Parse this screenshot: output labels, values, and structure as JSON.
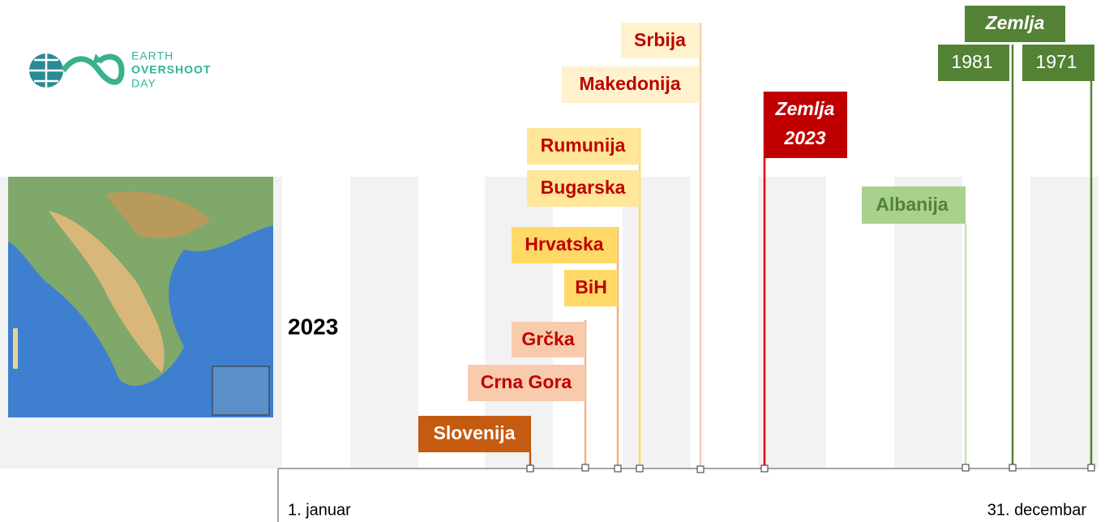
{
  "logo": {
    "lines": [
      "EARTH",
      "OVERSHOOT",
      "DAY"
    ]
  },
  "year": "2023",
  "axis": {
    "start": "1. januar",
    "end": "31. decembar"
  },
  "markers": [
    {
      "label": "Slovenija"
    },
    {
      "label": "Crna Gora"
    },
    {
      "label": "Grčka"
    },
    {
      "label": "BiH"
    },
    {
      "label": "Hrvatska"
    },
    {
      "label": "Bugarska"
    },
    {
      "label": "Rumunija"
    },
    {
      "label": "Makedonija"
    },
    {
      "label": "Srbija"
    },
    {
      "label": [
        "Zemlja",
        "2023"
      ]
    },
    {
      "label": "Albanija"
    }
  ],
  "earth_history": {
    "title": "Zemlja",
    "years": [
      "1981",
      "1971"
    ]
  }
}
